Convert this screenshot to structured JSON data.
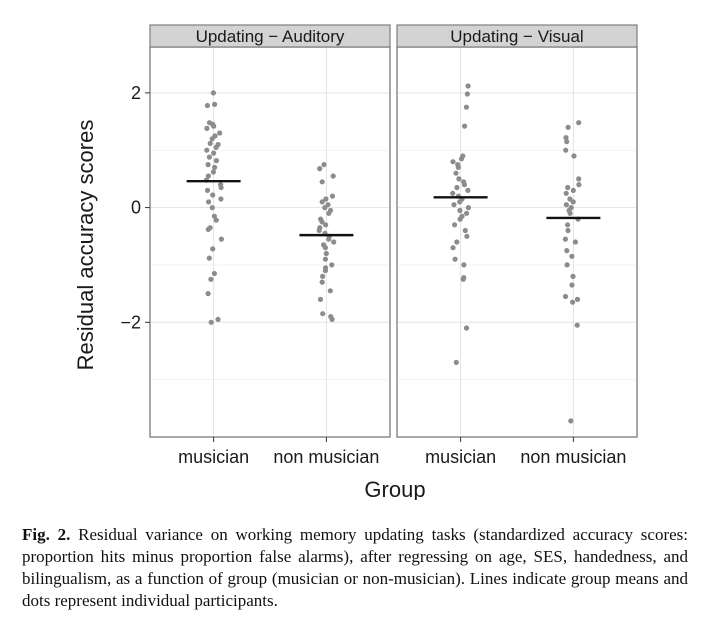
{
  "chart_data": {
    "type": "scatter",
    "ylabel": "Residual accuracy scores",
    "xlabel": "Group",
    "categories": [
      "musician",
      "non musician"
    ],
    "y_ticks": [
      "−2",
      "0",
      "2"
    ],
    "y_tick_values": [
      -2,
      0,
      2
    ],
    "ylim": [
      -4.0,
      2.8
    ],
    "grid": true,
    "point_color": "#8c8c8c",
    "mean_color": "#111111",
    "panels": [
      {
        "title": "Updating − Auditory",
        "groups": [
          {
            "category": "musician",
            "mean": 0.46,
            "values": [
              2.0,
              1.8,
              1.78,
              1.48,
              1.45,
              1.42,
              1.38,
              1.3,
              1.25,
              1.2,
              1.12,
              1.1,
              1.05,
              1.0,
              0.95,
              0.88,
              0.82,
              0.75,
              0.7,
              0.62,
              0.55,
              0.48,
              0.4,
              0.35,
              0.3,
              0.22,
              0.15,
              0.1,
              0.0,
              -0.15,
              -0.22,
              -0.35,
              -0.38,
              -0.55,
              -0.72,
              -0.88,
              -1.15,
              -1.25,
              -1.5,
              -1.95,
              -2.0
            ]
          },
          {
            "category": "non musician",
            "mean": -0.48,
            "values": [
              0.75,
              0.68,
              0.55,
              0.45,
              0.2,
              0.15,
              0.1,
              0.05,
              0.0,
              -0.05,
              -0.1,
              -0.2,
              -0.25,
              -0.3,
              -0.35,
              -0.4,
              -0.45,
              -0.5,
              -0.55,
              -0.6,
              -0.65,
              -0.7,
              -0.8,
              -0.9,
              -1.0,
              -1.05,
              -1.1,
              -1.2,
              -1.3,
              -1.45,
              -1.6,
              -1.85,
              -1.9,
              -1.95
            ]
          }
        ]
      },
      {
        "title": "Updating − Visual",
        "groups": [
          {
            "category": "musician",
            "mean": 0.18,
            "values": [
              2.12,
              1.98,
              1.75,
              1.42,
              0.9,
              0.85,
              0.8,
              0.75,
              0.7,
              0.6,
              0.5,
              0.45,
              0.4,
              0.35,
              0.3,
              0.25,
              0.2,
              0.15,
              0.1,
              0.05,
              0.0,
              -0.05,
              -0.1,
              -0.15,
              -0.2,
              -0.3,
              -0.4,
              -0.5,
              -0.6,
              -0.7,
              -0.9,
              -1.0,
              -1.22,
              -1.25,
              -2.1,
              -2.7
            ]
          },
          {
            "category": "non musician",
            "mean": -0.18,
            "values": [
              1.48,
              1.4,
              1.22,
              1.15,
              1.0,
              0.9,
              0.5,
              0.4,
              0.35,
              0.3,
              0.25,
              0.15,
              0.1,
              0.05,
              0.0,
              -0.05,
              -0.1,
              -0.2,
              -0.3,
              -0.4,
              -0.55,
              -0.6,
              -0.75,
              -0.85,
              -1.0,
              -1.2,
              -1.35,
              -1.55,
              -1.6,
              -1.65,
              -2.05,
              -3.72
            ]
          }
        ]
      }
    ]
  },
  "caption": {
    "label": "Fig. 2.",
    "text": "Residual variance on working memory updating tasks (standardized accuracy scores: proportion hits minus proportion false alarms), after regressing on age, SES, handedness, and bilingualism, as a function of group (musician or non-musician). Lines indicate group means and dots represent individual participants."
  }
}
